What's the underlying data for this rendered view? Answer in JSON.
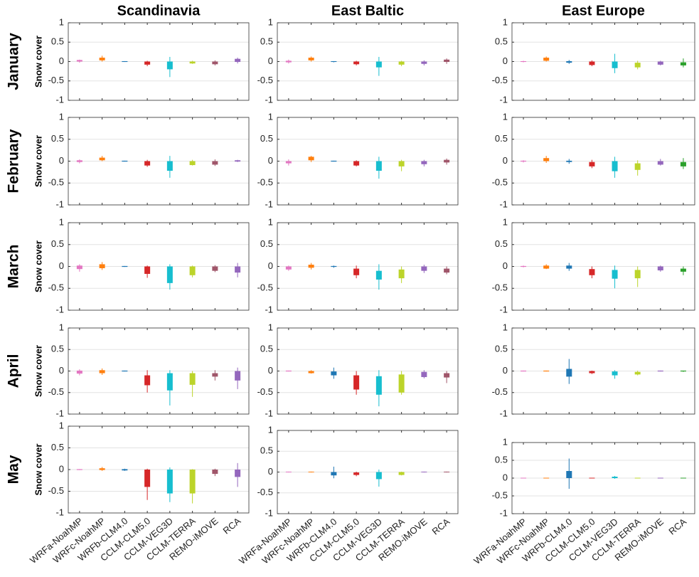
{
  "chart_data": [
    {
      "type": "box",
      "title": "Scandinavia",
      "row_label": "January",
      "ylabel": "Snow cover",
      "ylim": [
        -1,
        1
      ],
      "yticks": [
        1,
        0.5,
        0,
        -0.5,
        -1
      ],
      "grid": true,
      "colors": [
        "#e377c2",
        "#ff7f0e",
        "#1f77b4",
        "#d62728",
        "#17becf",
        "#bcd42a",
        "#a0566a",
        "#9467bd"
      ],
      "values": [
        [
          -0.03,
          0,
          0.04,
          0.05
        ],
        [
          0,
          0.03,
          0.1,
          0.15
        ],
        [
          -0.01,
          -0.01,
          0.01,
          0.01
        ],
        [
          -0.12,
          -0.08,
          0,
          0.02
        ],
        [
          -0.4,
          -0.2,
          0,
          0.12
        ],
        [
          -0.06,
          -0.05,
          0,
          0.02
        ],
        [
          -0.1,
          -0.07,
          0,
          0.03
        ],
        [
          -0.05,
          -0.01,
          0.07,
          0.1
        ]
      ]
    },
    {
      "type": "box",
      "title": "East Baltic",
      "ylim": [
        -1,
        1
      ],
      "yticks": [
        1,
        0.5,
        0,
        -0.5,
        -1
      ],
      "grid": true,
      "colors": [
        "#e377c2",
        "#ff7f0e",
        "#1f77b4",
        "#d62728",
        "#17becf",
        "#bcd42a",
        "#9467bd",
        "#a0566a"
      ],
      "values": [
        [
          -0.05,
          -0.02,
          0.02,
          0.05
        ],
        [
          0,
          0.03,
          0.1,
          0.13
        ],
        [
          -0.02,
          -0.01,
          0.01,
          0.01
        ],
        [
          -0.1,
          -0.07,
          0,
          0.02
        ],
        [
          -0.37,
          -0.15,
          0,
          0.12
        ],
        [
          -0.12,
          -0.08,
          0,
          0.02
        ],
        [
          -0.1,
          -0.06,
          0,
          0.03
        ],
        [
          -0.06,
          -0.01,
          0.05,
          0.08
        ]
      ]
    },
    {
      "type": "box",
      "title": "East Europe",
      "ylim": [
        -1,
        1
      ],
      "yticks": [
        1,
        0.5,
        0,
        -0.5,
        -1
      ],
      "grid": true,
      "colors": [
        "#e377c2",
        "#ff7f0e",
        "#1f77b4",
        "#d62728",
        "#17becf",
        "#bcd42a",
        "#9467bd",
        "#2ca02c"
      ],
      "values": [
        [
          -0.02,
          -0.01,
          0.01,
          0.02
        ],
        [
          0,
          0.02,
          0.1,
          0.13
        ],
        [
          -0.06,
          -0.03,
          0.01,
          0.04
        ],
        [
          -0.12,
          -0.09,
          0,
          0.03
        ],
        [
          -0.3,
          -0.17,
          0,
          0.2
        ],
        [
          -0.2,
          -0.15,
          -0.03,
          0.02
        ],
        [
          -0.1,
          -0.08,
          0,
          0.02
        ],
        [
          -0.15,
          -0.1,
          -0.02,
          0.08
        ]
      ]
    },
    {
      "type": "box",
      "row_label": "February",
      "ylabel": "Snow cover",
      "ylim": [
        -1,
        1
      ],
      "yticks": [
        1,
        0.5,
        0,
        -0.5,
        -1
      ],
      "grid": true,
      "colors": [
        "#e377c2",
        "#ff7f0e",
        "#1f77b4",
        "#d62728",
        "#17becf",
        "#bcd42a",
        "#a0566a",
        "#9467bd"
      ],
      "values": [
        [
          -0.05,
          -0.02,
          0.02,
          0.04
        ],
        [
          0,
          0.02,
          0.08,
          0.12
        ],
        [
          -0.01,
          -0.01,
          0.01,
          0.01
        ],
        [
          -0.13,
          -0.1,
          0,
          0.03
        ],
        [
          -0.38,
          -0.22,
          0,
          0.12
        ],
        [
          -0.1,
          -0.09,
          0,
          0.03
        ],
        [
          -0.11,
          -0.08,
          0,
          0.04
        ],
        [
          -0.02,
          -0.01,
          0.02,
          0.03
        ]
      ]
    },
    {
      "type": "box",
      "ylim": [
        -1,
        1
      ],
      "yticks": [
        1,
        0.5,
        0,
        -0.5,
        -1
      ],
      "grid": true,
      "colors": [
        "#e377c2",
        "#ff7f0e",
        "#1f77b4",
        "#d62728",
        "#17becf",
        "#bcd42a",
        "#9467bd",
        "#a0566a"
      ],
      "values": [
        [
          -0.1,
          -0.05,
          0,
          0.04
        ],
        [
          -0.02,
          0.02,
          0.1,
          0.12
        ],
        [
          -0.01,
          -0.01,
          0.01,
          0.01
        ],
        [
          -0.12,
          -0.1,
          0,
          0.02
        ],
        [
          -0.4,
          -0.22,
          0,
          0.1
        ],
        [
          -0.23,
          -0.12,
          0,
          0.03
        ],
        [
          -0.12,
          -0.07,
          0,
          0.03
        ],
        [
          -0.08,
          -0.03,
          0.03,
          0.06
        ]
      ]
    },
    {
      "type": "box",
      "ylim": [
        -1,
        1
      ],
      "yticks": [
        1,
        0.5,
        0,
        -0.5,
        -1
      ],
      "grid": true,
      "colors": [
        "#e377c2",
        "#ff7f0e",
        "#1f77b4",
        "#d62728",
        "#17becf",
        "#bcd42a",
        "#9467bd",
        "#2ca02c"
      ],
      "values": [
        [
          -0.03,
          -0.01,
          0.01,
          0.02
        ],
        [
          -0.04,
          0,
          0.07,
          0.12
        ],
        [
          -0.06,
          -0.02,
          0.01,
          0.05
        ],
        [
          -0.16,
          -0.12,
          -0.02,
          0.03
        ],
        [
          -0.38,
          -0.23,
          0,
          0.1
        ],
        [
          -0.33,
          -0.2,
          -0.05,
          0.02
        ],
        [
          -0.1,
          -0.08,
          0,
          0.05
        ],
        [
          -0.18,
          -0.12,
          -0.02,
          0.07
        ]
      ]
    },
    {
      "type": "box",
      "row_label": "March",
      "ylabel": "Snow cover",
      "ylim": [
        -1,
        1
      ],
      "yticks": [
        1,
        0.5,
        0,
        -0.5,
        -1
      ],
      "grid": true,
      "colors": [
        "#e377c2",
        "#ff7f0e",
        "#1f77b4",
        "#d62728",
        "#17becf",
        "#bcd42a",
        "#a0566a",
        "#9467bd"
      ],
      "values": [
        [
          -0.12,
          -0.06,
          0.02,
          0.05
        ],
        [
          -0.08,
          -0.04,
          0.05,
          0.1
        ],
        [
          -0.01,
          -0.01,
          0.01,
          0.01
        ],
        [
          -0.26,
          -0.17,
          0,
          0.02
        ],
        [
          -0.53,
          -0.38,
          0,
          0.05
        ],
        [
          -0.25,
          -0.2,
          0,
          0.02
        ],
        [
          -0.13,
          -0.1,
          0,
          0.03
        ],
        [
          -0.25,
          -0.14,
          0,
          0.08
        ]
      ]
    },
    {
      "type": "box",
      "ylim": [
        -1,
        1
      ],
      "yticks": [
        1,
        0.5,
        0,
        -0.5,
        -1
      ],
      "grid": true,
      "colors": [
        "#e377c2",
        "#ff7f0e",
        "#1f77b4",
        "#d62728",
        "#17becf",
        "#bcd42a",
        "#9467bd",
        "#a0566a"
      ],
      "values": [
        [
          -0.1,
          -0.07,
          0,
          0.02
        ],
        [
          -0.07,
          -0.03,
          0.04,
          0.08
        ],
        [
          -0.03,
          -0.01,
          0.01,
          0.02
        ],
        [
          -0.27,
          -0.2,
          -0.05,
          0.02
        ],
        [
          -0.53,
          -0.3,
          -0.1,
          0.05
        ],
        [
          -0.38,
          -0.27,
          -0.07,
          0
        ],
        [
          -0.15,
          -0.1,
          0,
          0.04
        ],
        [
          -0.18,
          -0.14,
          -0.05,
          0
        ]
      ]
    },
    {
      "type": "box",
      "ylim": [
        -1,
        1
      ],
      "yticks": [
        1,
        0.5,
        0,
        -0.5,
        -1
      ],
      "grid": true,
      "colors": [
        "#e377c2",
        "#ff7f0e",
        "#1f77b4",
        "#d62728",
        "#17becf",
        "#bcd42a",
        "#9467bd",
        "#2ca02c"
      ],
      "values": [
        [
          -0.02,
          -0.01,
          0.01,
          0.02
        ],
        [
          -0.06,
          -0.05,
          0.02,
          0.05
        ],
        [
          -0.1,
          -0.05,
          0.02,
          0.08
        ],
        [
          -0.27,
          -0.2,
          -0.06,
          0
        ],
        [
          -0.5,
          -0.28,
          -0.08,
          0.02
        ],
        [
          -0.47,
          -0.27,
          -0.08,
          0
        ],
        [
          -0.12,
          -0.09,
          0,
          0.02
        ],
        [
          -0.2,
          -0.12,
          -0.05,
          0
        ]
      ]
    },
    {
      "type": "box",
      "row_label": "April",
      "ylabel": "Snow cover",
      "ylim": [
        -1,
        1
      ],
      "yticks": [
        1,
        0.5,
        0,
        -0.5,
        -1
      ],
      "grid": true,
      "colors": [
        "#e377c2",
        "#ff7f0e",
        "#1f77b4",
        "#d62728",
        "#17becf",
        "#bcd42a",
        "#a0566a",
        "#9467bd"
      ],
      "values": [
        [
          -0.1,
          -0.06,
          0.01,
          0.04
        ],
        [
          -0.09,
          -0.05,
          0.02,
          0.06
        ],
        [
          -0.01,
          -0.01,
          0.01,
          0.01
        ],
        [
          -0.5,
          -0.33,
          -0.1,
          0.02
        ],
        [
          -0.8,
          -0.45,
          -0.05,
          0.02
        ],
        [
          -0.6,
          -0.32,
          -0.05,
          0
        ],
        [
          -0.22,
          -0.13,
          -0.05,
          0.02
        ],
        [
          -0.42,
          -0.22,
          0,
          0.08
        ]
      ]
    },
    {
      "type": "box",
      "ylim": [
        -1,
        1
      ],
      "yticks": [
        1,
        0.5,
        0,
        -0.5,
        -1
      ],
      "grid": true,
      "colors": [
        "#e377c2",
        "#ff7f0e",
        "#1f77b4",
        "#d62728",
        "#17becf",
        "#bcd42a",
        "#9467bd",
        "#a0566a"
      ],
      "values": [
        [
          -0.01,
          -0.01,
          0.01,
          0.01
        ],
        [
          -0.06,
          -0.05,
          0,
          0.02
        ],
        [
          -0.18,
          -0.1,
          -0.01,
          0.08
        ],
        [
          -0.55,
          -0.43,
          -0.1,
          0
        ],
        [
          -0.82,
          -0.55,
          -0.12,
          0.02
        ],
        [
          -0.55,
          -0.5,
          -0.08,
          0
        ],
        [
          -0.17,
          -0.14,
          -0.02,
          0.02
        ],
        [
          -0.28,
          -0.15,
          -0.05,
          0
        ]
      ]
    },
    {
      "type": "box",
      "ylim": [
        -1,
        1
      ],
      "yticks": [
        1,
        0.5,
        0,
        -0.5,
        -1
      ],
      "grid": true,
      "colors": [
        "#e377c2",
        "#ff7f0e",
        "#1f77b4",
        "#d62728",
        "#17becf",
        "#bcd42a",
        "#9467bd",
        "#2ca02c"
      ],
      "values": [
        [
          -0.01,
          -0.01,
          0.01,
          0.01
        ],
        [
          -0.01,
          -0.01,
          0.01,
          0.01
        ],
        [
          -0.3,
          -0.13,
          0.05,
          0.28
        ],
        [
          -0.07,
          -0.05,
          0,
          0.01
        ],
        [
          -0.18,
          -0.1,
          -0.01,
          0.02
        ],
        [
          -0.1,
          -0.08,
          -0.02,
          0.01
        ],
        [
          -0.01,
          -0.01,
          0.01,
          0.01
        ],
        [
          -0.02,
          -0.01,
          0.01,
          0.01
        ]
      ]
    },
    {
      "type": "box",
      "row_label": "May",
      "ylabel": "Snow cover",
      "ylim": [
        -1,
        1
      ],
      "yticks": [
        1,
        0.5,
        0,
        -0.5,
        -1
      ],
      "grid": true,
      "categories": [
        "WRFa-NoahMP",
        "WRFc-NoahMP",
        "WRFb-CLM4.0",
        "CCLM-CLM5.0",
        "CCLM-VEG3D",
        "CCLM-TERRA",
        "REMO-iMOVE",
        "RCA"
      ],
      "colors": [
        "#e377c2",
        "#ff7f0e",
        "#1f77b4",
        "#d62728",
        "#17becf",
        "#bcd42a",
        "#a0566a",
        "#9467bd"
      ],
      "values": [
        [
          -0.01,
          -0.01,
          0.01,
          0.01
        ],
        [
          -0.03,
          -0.01,
          0.03,
          0.06
        ],
        [
          -0.03,
          -0.02,
          0.01,
          0.02
        ],
        [
          -0.7,
          -0.4,
          0,
          0.02
        ],
        [
          -0.75,
          -0.55,
          0,
          0.05
        ],
        [
          -0.78,
          -0.55,
          0,
          0.01
        ],
        [
          -0.15,
          -0.1,
          0,
          0.02
        ],
        [
          -0.4,
          -0.17,
          0,
          0.15
        ]
      ]
    },
    {
      "type": "box",
      "ylim": [
        -1,
        1
      ],
      "yticks": [
        1,
        0.5,
        0,
        -0.5,
        -1
      ],
      "grid": true,
      "categories": [
        "WRFa-NoahMP",
        "WRFc-NoahMP",
        "WRFb-CLM4.0",
        "CCLM-CLM5.0",
        "CCLM-VEG3D",
        "CCLM-TERRA",
        "REMO-iMOVE",
        "RCA"
      ],
      "colors": [
        "#e377c2",
        "#ff7f0e",
        "#1f77b4",
        "#d62728",
        "#17becf",
        "#bcd42a",
        "#9467bd",
        "#a0566a"
      ],
      "values": [
        [
          -0.01,
          0,
          0.01,
          0.01
        ],
        [
          -0.01,
          0,
          0.01,
          0.01
        ],
        [
          -0.15,
          -0.08,
          0,
          0.13
        ],
        [
          -0.1,
          -0.07,
          -0.01,
          0.01
        ],
        [
          -0.35,
          -0.17,
          0,
          0.06
        ],
        [
          -0.08,
          -0.07,
          0,
          0.01
        ],
        [
          -0.01,
          0,
          0.01,
          0.01
        ],
        [
          -0.01,
          0,
          0.01,
          0.01
        ]
      ]
    },
    {
      "type": "box",
      "ylim": [
        -1,
        1
      ],
      "yticks": [
        1,
        0.5,
        0,
        -0.5,
        -1
      ],
      "grid": true,
      "categories": [
        "WRFa-NoahMP",
        "WRFc-NoahMP",
        "WRFb-CLM4.0",
        "CCLM-CLM5.0",
        "CCLM-VEG3D",
        "CCLM-TERRA",
        "REMO-iMOVE",
        "RCA"
      ],
      "colors": [
        "#e377c2",
        "#ff7f0e",
        "#1f77b4",
        "#d62728",
        "#17becf",
        "#bcd42a",
        "#9467bd",
        "#2ca02c"
      ],
      "values": [
        [
          -0.01,
          0,
          0.01,
          0.01
        ],
        [
          -0.01,
          0,
          0.01,
          0.01
        ],
        [
          -0.3,
          0,
          0.2,
          0.55
        ],
        [
          -0.01,
          0,
          0.01,
          0.01
        ],
        [
          -0.02,
          0,
          0.04,
          0.06
        ],
        [
          -0.01,
          0,
          0.01,
          0.01
        ],
        [
          -0.01,
          0,
          0.01,
          0.01
        ],
        [
          -0.01,
          0,
          0.01,
          0.01
        ]
      ]
    }
  ]
}
